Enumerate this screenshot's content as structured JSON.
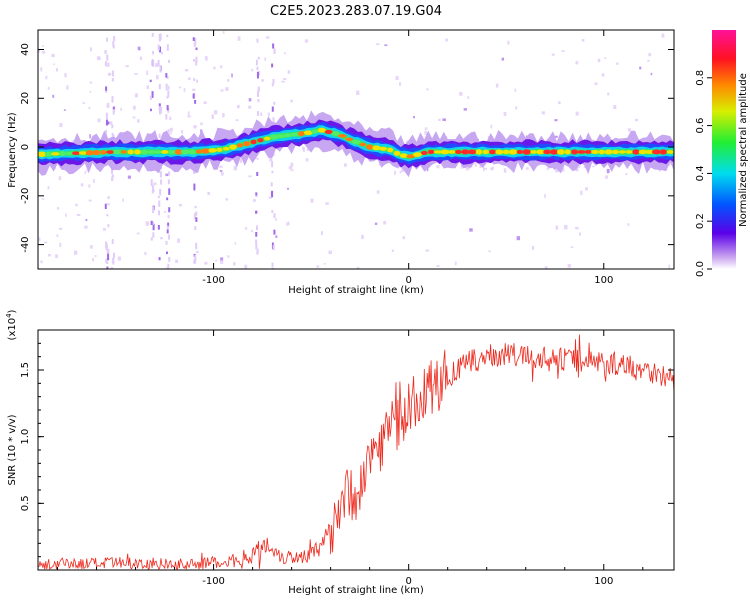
{
  "title": "C2E5.2023.283.07.19.G04",
  "chart_data": [
    {
      "type": "heatmap",
      "name": "spectrogram",
      "xlabel": "Height of straight line (km)",
      "ylabel": "Frequency (Hz)",
      "xlim": [
        -190,
        136
      ],
      "ylim": [
        -50,
        48
      ],
      "xticks": [
        -100,
        0,
        100
      ],
      "xtick_labels": [
        "-100",
        "0",
        "100"
      ],
      "yticks": [
        -40,
        -20,
        0,
        20,
        40
      ],
      "ytick_labels": [
        "-40",
        "-20",
        "0",
        "20",
        "40"
      ],
      "grid": false,
      "ridge": {
        "x": [
          -190,
          -150,
          -110,
          -95,
          -80,
          -70,
          -60,
          -50,
          -45,
          -40,
          -35,
          -30,
          -20,
          -10,
          -5,
          0,
          10,
          50,
          100,
          136
        ],
        "freq_hz": [
          -3,
          -2,
          -2,
          -1,
          2,
          4,
          5,
          6,
          7,
          6,
          5,
          3,
          0,
          -1,
          -3,
          -4,
          -2,
          -2,
          -2,
          -2
        ]
      },
      "colorbar": {
        "label": "Normalized spectral amplitude",
        "range": [
          0.0,
          1.0
        ],
        "ticks": [
          0.0,
          0.2,
          0.4,
          0.6,
          0.8
        ],
        "tick_labels": [
          "0.0",
          "0.2",
          "0.4",
          "0.6",
          "0.8"
        ],
        "colormap": "rainbow (white-violet-blue-cyan-green-yellow-orange-red-magenta)"
      }
    },
    {
      "type": "line",
      "name": "snr",
      "xlabel": "Height of straight line (km)",
      "ylabel": "SNR (10 * v/v)",
      "scale_note_base": "(x10",
      "scale_note_exp": "4",
      "scale_note_close": ")",
      "xlim": [
        -190,
        136
      ],
      "ylim": [
        0,
        1.8
      ],
      "xticks": [
        -100,
        0,
        100
      ],
      "xtick_labels": [
        "-100",
        "0",
        "100"
      ],
      "yticks": [
        0.5,
        1.0,
        1.5
      ],
      "ytick_labels": [
        "0.5",
        "1.0",
        "1.5"
      ],
      "grid": false,
      "series_color": "#ee2a1e",
      "envelope": {
        "x": [
          -190,
          -150,
          -110,
          -90,
          -80,
          -72,
          -65,
          -55,
          -45,
          -40,
          -35,
          -30,
          -25,
          -20,
          -15,
          -10,
          0,
          10,
          20,
          30,
          40,
          50,
          60,
          80,
          100,
          120,
          136
        ],
        "y": [
          0.04,
          0.05,
          0.04,
          0.07,
          0.12,
          0.2,
          0.1,
          0.1,
          0.15,
          0.3,
          0.55,
          0.55,
          0.62,
          0.85,
          0.95,
          1.05,
          1.2,
          1.35,
          1.45,
          1.55,
          1.6,
          1.62,
          1.6,
          1.58,
          1.56,
          1.52,
          1.42
        ]
      }
    }
  ]
}
